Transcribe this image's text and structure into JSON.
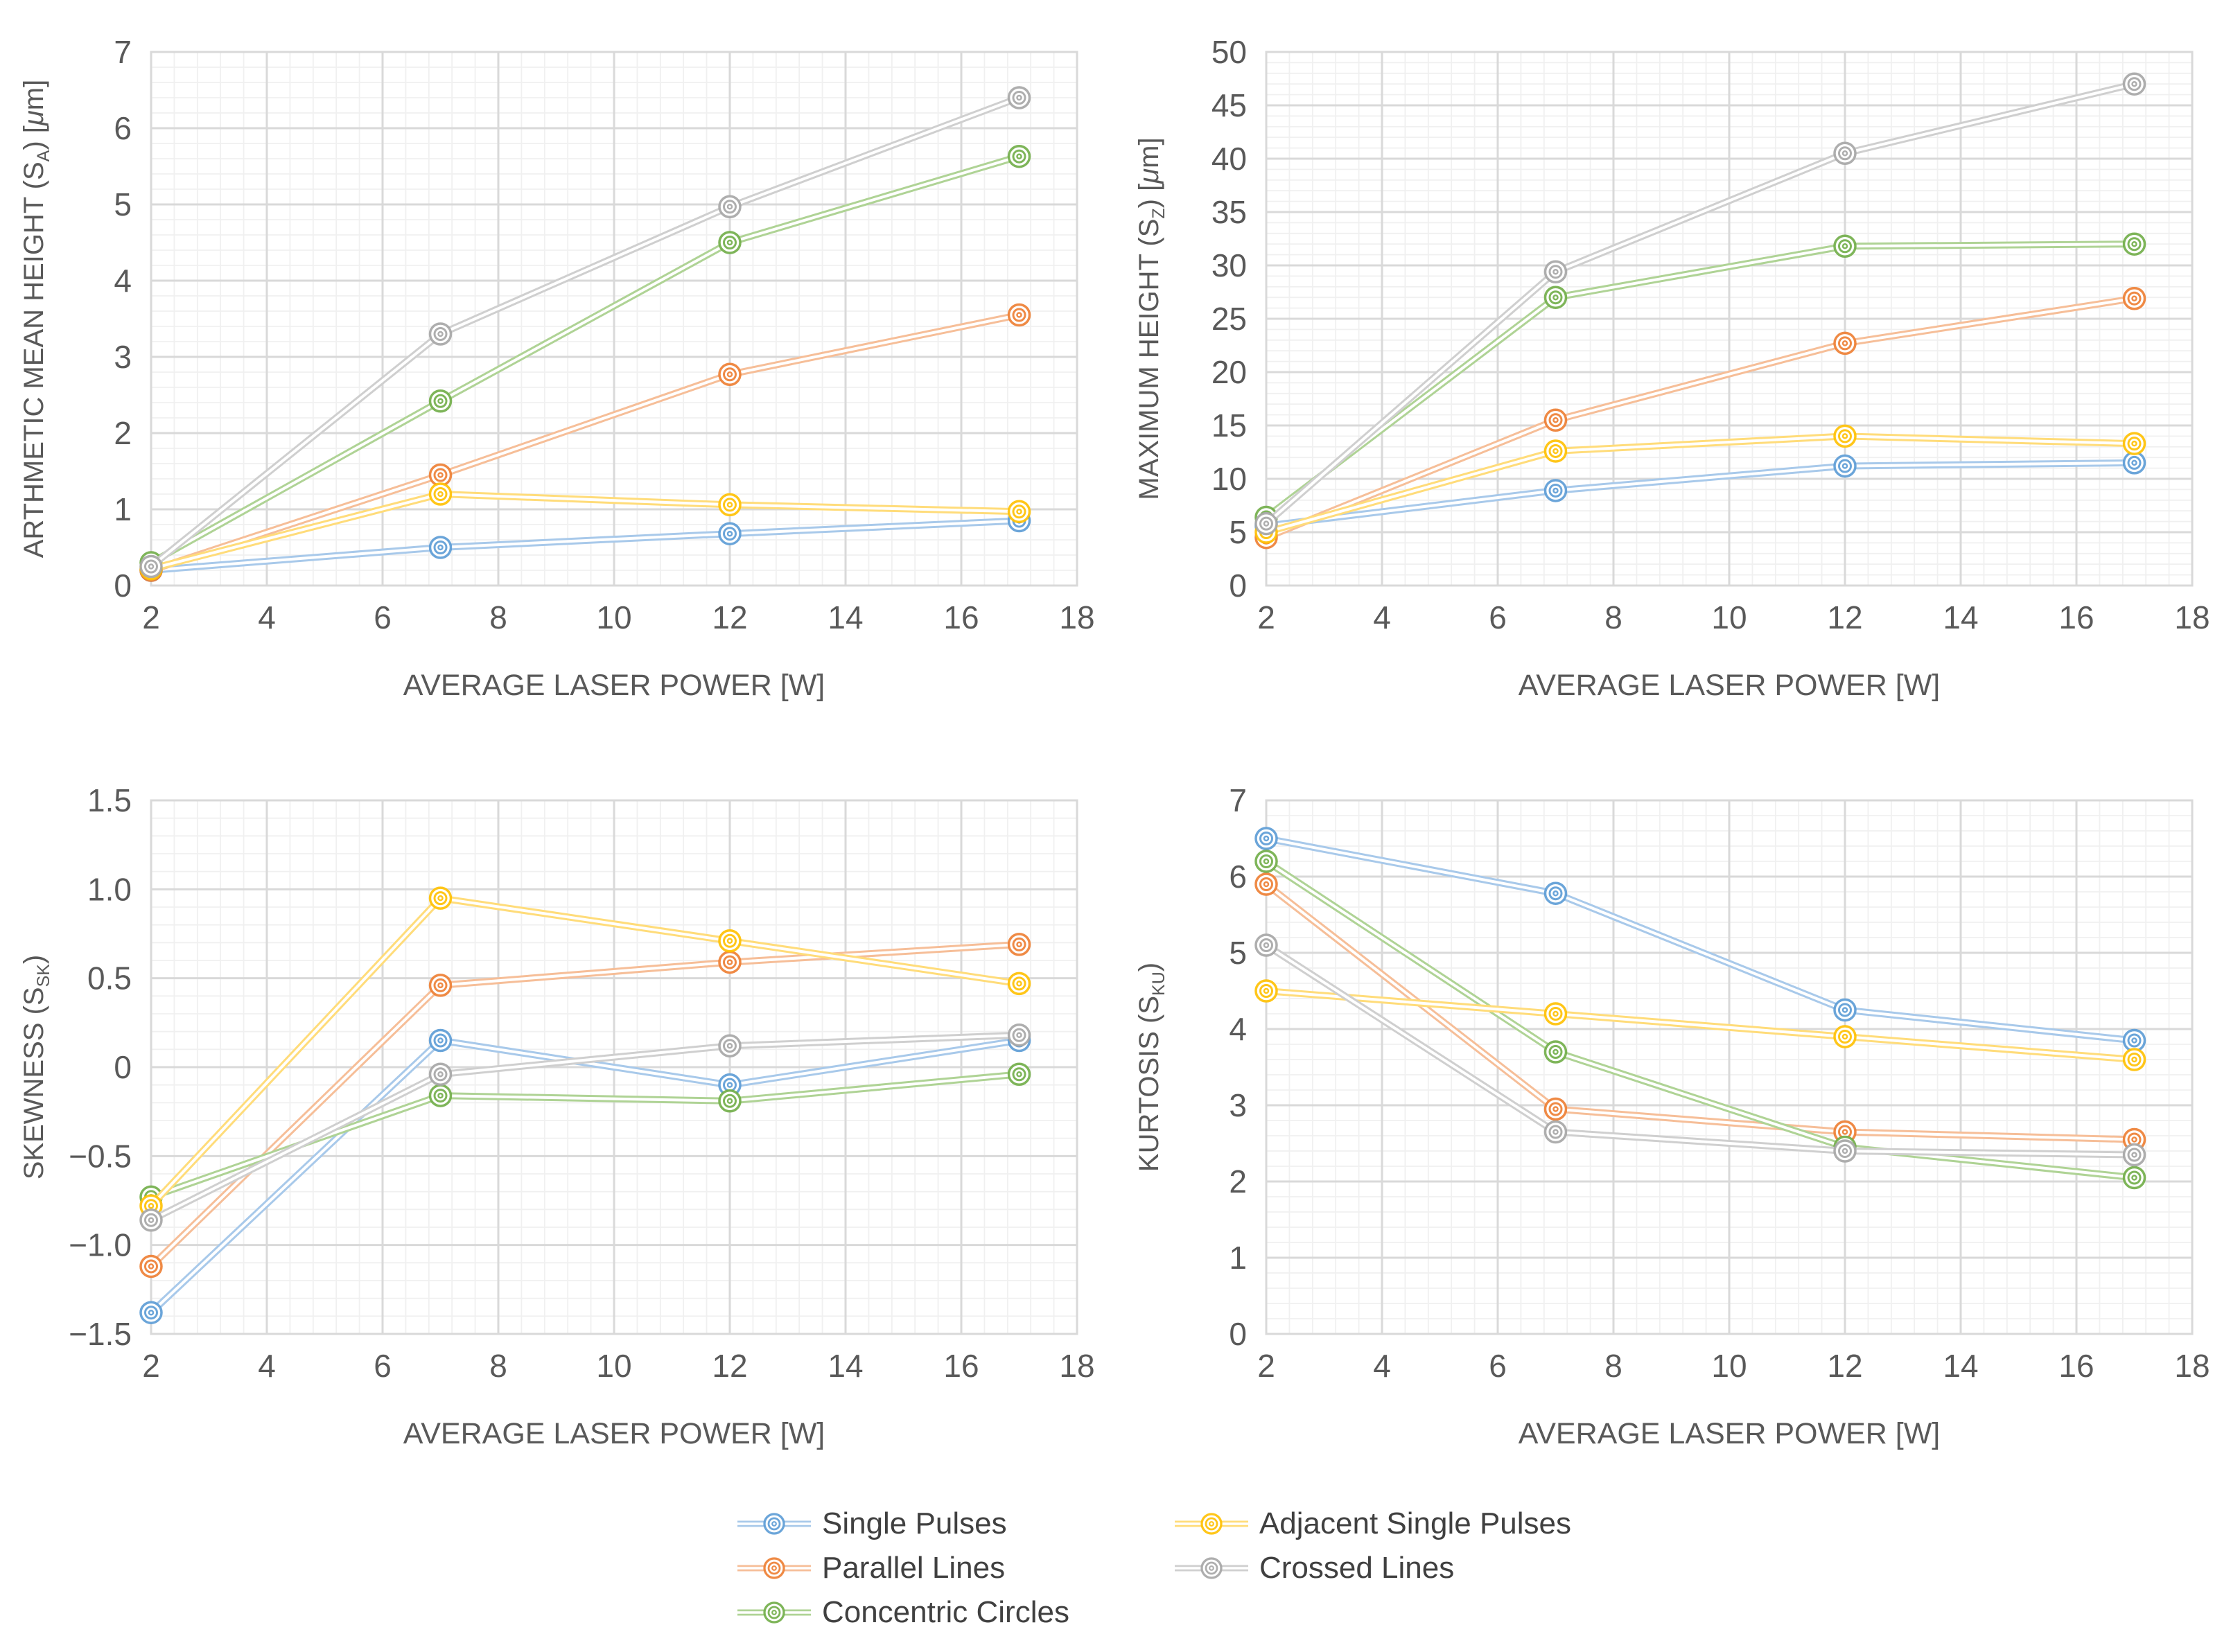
{
  "figure": {
    "background": "#ffffff",
    "text_color": "#595959",
    "grid_major_color": "#D9D9D9",
    "grid_minor_color": "#F0F0F0",
    "legend_position": "bottom"
  },
  "series_styles": {
    "Single Pulses": {
      "color": "#5B9BD5",
      "tint": "#A8C9EA"
    },
    "Parallel Lines": {
      "color": "#ED7D31",
      "tint": "#F6BE98"
    },
    "Concentric Circles": {
      "color": "#70AD47",
      "tint": "#AFD395"
    },
    "Adjacent Single Pulses": {
      "color": "#FFC000",
      "tint": "#FFDC7A"
    },
    "Crossed Lines": {
      "color": "#A5A5A5",
      "tint": "#CFCFCF"
    }
  },
  "legend": {
    "columns": [
      [
        "Single Pulses",
        "Parallel Lines",
        "Concentric Circles"
      ],
      [
        "Adjacent Single Pulses",
        "Crossed Lines"
      ]
    ]
  },
  "chart_data": [
    {
      "type": "line",
      "title": "",
      "xlabel": "AVERAGE LASER POWER [W]",
      "ylabel": "ARTHMETIC MEAN HEIGHT (SA) [μm]",
      "ylabel_parts": [
        {
          "t": "ARTHMETIC MEAN HEIGHT (S"
        },
        {
          "t": "A",
          "sub": true
        },
        {
          "t": ") ["
        },
        {
          "t": "μ",
          "italic": true
        },
        {
          "t": "m]"
        }
      ],
      "x": [
        2,
        7,
        12,
        17
      ],
      "xlim": [
        2,
        18
      ],
      "xmajor": 2,
      "xminor": 0.4,
      "ylim": [
        0,
        7
      ],
      "ymajor": 1,
      "yminor": 0.2,
      "ydecimals": 0,
      "grid": true,
      "series": [
        {
          "name": "Single Pulses",
          "values": [
            0.2,
            0.5,
            0.68,
            0.85
          ]
        },
        {
          "name": "Parallel Lines",
          "values": [
            0.2,
            1.45,
            2.77,
            3.55
          ]
        },
        {
          "name": "Concentric Circles",
          "values": [
            0.3,
            2.42,
            4.5,
            5.63
          ]
        },
        {
          "name": "Adjacent Single Pulses",
          "values": [
            0.22,
            1.2,
            1.06,
            0.97
          ]
        },
        {
          "name": "Crossed Lines",
          "values": [
            0.25,
            3.3,
            4.97,
            6.4
          ]
        }
      ]
    },
    {
      "type": "line",
      "title": "",
      "xlabel": "AVERAGE LASER POWER [W]",
      "ylabel": "MAXIMUM HEIGHT (SZ) [μm]",
      "ylabel_parts": [
        {
          "t": "MAXIMUM HEIGHT (S"
        },
        {
          "t": "Z",
          "sub": true
        },
        {
          "t": ") ["
        },
        {
          "t": "μ",
          "italic": true
        },
        {
          "t": "m]"
        }
      ],
      "x": [
        2,
        7,
        12,
        17
      ],
      "xlim": [
        2,
        18
      ],
      "xmajor": 2,
      "xminor": 0.4,
      "ylim": [
        0,
        50
      ],
      "ymajor": 5,
      "yminor": 1,
      "ydecimals": 0,
      "grid": true,
      "series": [
        {
          "name": "Single Pulses",
          "values": [
            5.6,
            8.9,
            11.2,
            11.5
          ]
        },
        {
          "name": "Parallel Lines",
          "values": [
            4.5,
            15.5,
            22.7,
            26.9
          ]
        },
        {
          "name": "Concentric Circles",
          "values": [
            6.4,
            27.0,
            31.8,
            32.0
          ]
        },
        {
          "name": "Adjacent Single Pulses",
          "values": [
            5.0,
            12.6,
            14.0,
            13.3
          ]
        },
        {
          "name": "Crossed Lines",
          "values": [
            5.8,
            29.4,
            40.5,
            47.0
          ]
        }
      ]
    },
    {
      "type": "line",
      "title": "",
      "xlabel": "AVERAGE LASER POWER [W]",
      "ylabel": "SKEWNESS (SSK)",
      "ylabel_parts": [
        {
          "t": "SKEWNESS (S"
        },
        {
          "t": "SK",
          "sub": true
        },
        {
          "t": ")"
        }
      ],
      "x": [
        2,
        7,
        12,
        17
      ],
      "xlim": [
        2,
        18
      ],
      "xmajor": 2,
      "xminor": 0.4,
      "ylim": [
        -1.5,
        1.5
      ],
      "ymajor": 0.5,
      "yminor": 0.1,
      "ydecimals": 1,
      "grid": true,
      "series": [
        {
          "name": "Single Pulses",
          "values": [
            -1.38,
            0.15,
            -0.1,
            0.15
          ]
        },
        {
          "name": "Parallel Lines",
          "values": [
            -1.12,
            0.46,
            0.59,
            0.69
          ]
        },
        {
          "name": "Concentric Circles",
          "values": [
            -0.73,
            -0.16,
            -0.19,
            -0.04
          ]
        },
        {
          "name": "Adjacent Single Pulses",
          "values": [
            -0.78,
            0.95,
            0.71,
            0.47
          ]
        },
        {
          "name": "Crossed Lines",
          "values": [
            -0.86,
            -0.04,
            0.12,
            0.18
          ]
        }
      ]
    },
    {
      "type": "line",
      "title": "",
      "xlabel": "AVERAGE LASER POWER [W]",
      "ylabel": "KURTOSIS (SKU)",
      "ylabel_parts": [
        {
          "t": "KURTOSIS (S"
        },
        {
          "t": "KU",
          "sub": true
        },
        {
          "t": ")"
        }
      ],
      "x": [
        2,
        7,
        12,
        17
      ],
      "xlim": [
        2,
        18
      ],
      "xmajor": 2,
      "xminor": 0.4,
      "ylim": [
        0,
        7
      ],
      "ymajor": 1,
      "yminor": 0.2,
      "ydecimals": 0,
      "grid": true,
      "series": [
        {
          "name": "Single Pulses",
          "values": [
            6.5,
            5.78,
            4.25,
            3.85
          ]
        },
        {
          "name": "Parallel Lines",
          "values": [
            5.9,
            2.95,
            2.65,
            2.55
          ]
        },
        {
          "name": "Concentric Circles",
          "values": [
            6.2,
            3.7,
            2.45,
            2.05
          ]
        },
        {
          "name": "Adjacent Single Pulses",
          "values": [
            4.5,
            4.2,
            3.9,
            3.6
          ]
        },
        {
          "name": "Crossed Lines",
          "values": [
            5.1,
            2.65,
            2.4,
            2.35
          ]
        }
      ]
    }
  ]
}
